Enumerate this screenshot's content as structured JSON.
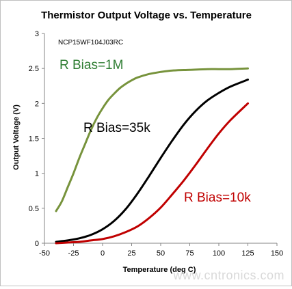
{
  "chart_data": {
    "type": "line",
    "title": "Thermistor Output Voltage vs. Temperature",
    "subtitle": "NCP15WF104J03RC",
    "xlabel": "Temperature (deg C)",
    "ylabel": "Output Voltage (V)",
    "xlim": [
      -50,
      150
    ],
    "ylim": [
      0,
      3
    ],
    "xticks": [
      -50,
      -25,
      0,
      25,
      50,
      75,
      100,
      125,
      150
    ],
    "yticks": [
      0,
      0.5,
      1,
      1.5,
      2,
      2.5,
      3
    ],
    "xtick_labels": [
      "-50",
      "-25",
      "0",
      "25",
      "50",
      "75",
      "100",
      "125",
      "150"
    ],
    "ytick_labels": [
      "0",
      "0.5",
      "1",
      "1.5",
      "2",
      "2.5",
      "3"
    ],
    "grid": false,
    "legend": "none",
    "series": [
      {
        "name": "R Bias=1M",
        "color": "#77933c",
        "x": [
          -40,
          -35,
          -30,
          -25,
          -20,
          -15,
          -10,
          -5,
          0,
          5,
          10,
          15,
          20,
          25,
          30,
          40,
          50,
          60,
          75,
          90,
          100,
          110,
          125
        ],
        "values": [
          0.46,
          0.6,
          0.8,
          1.0,
          1.22,
          1.42,
          1.62,
          1.79,
          1.93,
          2.05,
          2.14,
          2.22,
          2.28,
          2.33,
          2.37,
          2.42,
          2.45,
          2.47,
          2.48,
          2.49,
          2.49,
          2.49,
          2.5
        ]
      },
      {
        "name": "R Bias=35k",
        "color": "#000000",
        "x": [
          -40,
          -30,
          -20,
          -10,
          0,
          10,
          20,
          30,
          40,
          50,
          60,
          70,
          80,
          90,
          100,
          110,
          125
        ],
        "values": [
          0.02,
          0.04,
          0.07,
          0.12,
          0.2,
          0.32,
          0.49,
          0.71,
          0.96,
          1.22,
          1.47,
          1.7,
          1.89,
          2.04,
          2.15,
          2.24,
          2.34
        ]
      },
      {
        "name": "R Bias=10k",
        "color": "#c00000",
        "x": [
          -40,
          -30,
          -20,
          -10,
          0,
          10,
          20,
          30,
          40,
          50,
          60,
          70,
          80,
          90,
          100,
          110,
          125
        ],
        "values": [
          0.0,
          0.01,
          0.02,
          0.04,
          0.06,
          0.1,
          0.16,
          0.24,
          0.36,
          0.51,
          0.7,
          0.9,
          1.12,
          1.35,
          1.57,
          1.76,
          2.0
        ]
      }
    ],
    "annotations": [
      {
        "text": "R Bias=1M",
        "color": "#2e7d32",
        "series": 0
      },
      {
        "text": "R Bias=35k",
        "color": "#000000",
        "series": 1
      },
      {
        "text": "R Bias=10k",
        "color": "#c00000",
        "series": 2
      }
    ]
  },
  "watermark": "www.cntronics.com"
}
